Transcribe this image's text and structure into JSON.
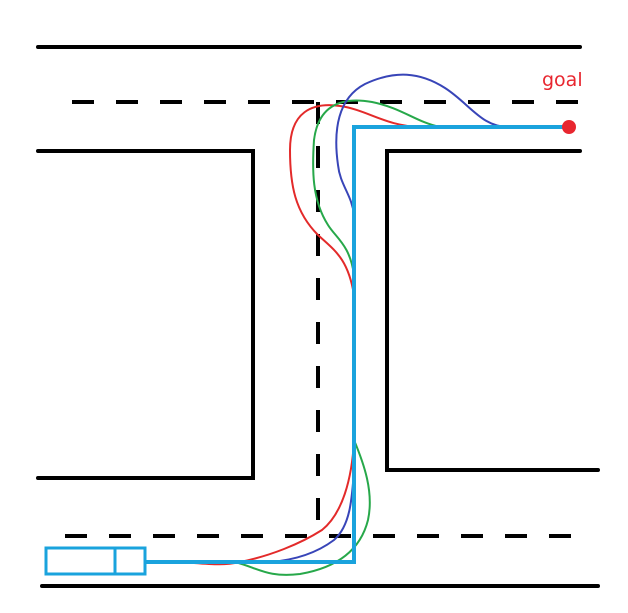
{
  "goal": {
    "label": "goal"
  },
  "colors": {
    "road": "#000000",
    "reference_path": "#1aa3dd",
    "vehicle": "#1aa3dd",
    "goal": "#e8262f",
    "trajectory_red": "#e32a2a",
    "trajectory_green": "#27a84a",
    "trajectory_blue": "#3845b8"
  },
  "icons": {
    "vehicle": "car-icon",
    "goal": "goal-dot-icon"
  }
}
